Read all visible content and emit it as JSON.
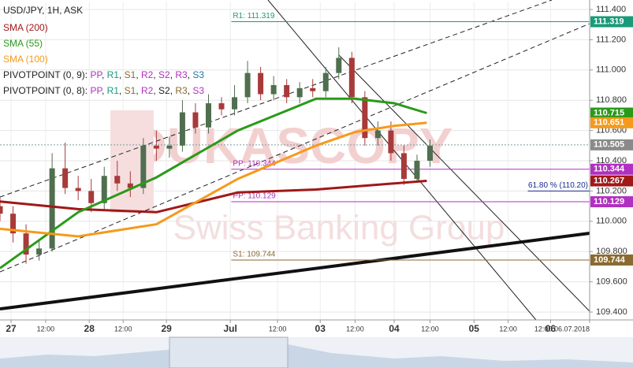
{
  "chart_data": {
    "type": "candlestick",
    "title": "USD/JPY, 1H, ASK",
    "watermark": [
      "DUKASCOPY",
      "Swiss Banking Group"
    ],
    "legend": [
      [
        {
          "text": "SMA (200)",
          "color": "#a01818"
        }
      ],
      [
        {
          "text": "SMA (55)",
          "color": "#2a9a1a"
        }
      ],
      [
        {
          "text": "SMA (100)",
          "color": "#f59a1a"
        }
      ],
      [
        {
          "text": "PIVOTPOINT (0, 9): ",
          "color": "#222"
        },
        {
          "text": "PP",
          "color": "#b030c0"
        },
        {
          "text": ", ",
          "color": "#222"
        },
        {
          "text": "R1",
          "color": "#1a9a7a"
        },
        {
          "text": ", ",
          "color": "#222"
        },
        {
          "text": "S1",
          "color": "#8a6a30"
        },
        {
          "text": ", ",
          "color": "#222"
        },
        {
          "text": "R2",
          "color": "#b030c0"
        },
        {
          "text": ", ",
          "color": "#222"
        },
        {
          "text": "S2",
          "color": "#b030c0"
        },
        {
          "text": ", ",
          "color": "#222"
        },
        {
          "text": "R3",
          "color": "#b030c0"
        },
        {
          "text": ", ",
          "color": "#222"
        },
        {
          "text": "S3",
          "color": "#1a7ab0"
        }
      ],
      [
        {
          "text": "PIVOTPOINT (0, 8): ",
          "color": "#222"
        },
        {
          "text": "PP",
          "color": "#b030c0"
        },
        {
          "text": ", ",
          "color": "#222"
        },
        {
          "text": "R1",
          "color": "#1a9a7a"
        },
        {
          "text": ", ",
          "color": "#222"
        },
        {
          "text": "S1",
          "color": "#8a6a30"
        },
        {
          "text": ", ",
          "color": "#222"
        },
        {
          "text": "R2",
          "color": "#b030c0"
        },
        {
          "text": ", ",
          "color": "#222"
        },
        {
          "text": "S2",
          "color": "#222"
        },
        {
          "text": ", ",
          "color": "#222"
        },
        {
          "text": "R3",
          "color": "#8a6a30"
        },
        {
          "text": ", ",
          "color": "#222"
        },
        {
          "text": "S3",
          "color": "#b030c0"
        }
      ]
    ],
    "candles": {
      "x": [
        0,
        4,
        8,
        12,
        16,
        20,
        24,
        28,
        32,
        36,
        40,
        44,
        48,
        52,
        56,
        60,
        64,
        68,
        72,
        76,
        80,
        84,
        88,
        92,
        96,
        100,
        104,
        108,
        112,
        116,
        120,
        124,
        128,
        132
      ],
      "open": [
        110.1,
        110.05,
        109.92,
        109.78,
        109.82,
        110.35,
        110.22,
        110.2,
        110.12,
        110.3,
        110.25,
        110.22,
        110.5,
        110.48,
        110.5,
        110.72,
        110.62,
        110.78,
        110.74,
        110.82,
        110.98,
        110.84,
        110.9,
        110.82,
        110.88,
        110.86,
        110.98,
        111.08,
        110.82,
        110.55,
        110.6,
        110.45,
        110.28,
        110.4
      ],
      "high": [
        110.16,
        110.1,
        109.98,
        109.88,
        110.45,
        110.52,
        110.3,
        110.28,
        110.36,
        110.4,
        110.33,
        110.55,
        110.6,
        110.56,
        110.8,
        110.78,
        110.84,
        110.82,
        110.9,
        111.06,
        111.02,
        110.96,
        110.94,
        110.92,
        110.94,
        111.02,
        111.15,
        111.12,
        110.86,
        110.66,
        110.66,
        110.5,
        110.44,
        110.54
      ],
      "low": [
        110.0,
        109.86,
        109.72,
        109.74,
        109.8,
        110.18,
        110.14,
        110.06,
        110.08,
        110.2,
        110.16,
        110.18,
        110.4,
        110.42,
        110.46,
        110.58,
        110.58,
        110.7,
        110.7,
        110.78,
        110.8,
        110.8,
        110.78,
        110.78,
        110.82,
        110.82,
        110.94,
        110.78,
        110.5,
        110.5,
        110.4,
        110.24,
        110.26,
        110.36
      ],
      "close": [
        110.05,
        109.92,
        109.78,
        109.82,
        110.35,
        110.22,
        110.2,
        110.12,
        110.3,
        110.25,
        110.22,
        110.5,
        110.48,
        110.5,
        110.72,
        110.62,
        110.78,
        110.74,
        110.82,
        110.98,
        110.84,
        110.9,
        110.82,
        110.88,
        110.86,
        110.98,
        111.08,
        110.82,
        110.55,
        110.6,
        110.45,
        110.28,
        110.4,
        110.5
      ],
      "up_color": "#4f6f4f",
      "down_color": "#a83a3a"
    },
    "series": [
      {
        "name": "SMA (200)",
        "color": "#a01818",
        "x": [
          0,
          24,
          48,
          73,
          97,
          109,
          121,
          131
        ],
        "values": [
          110.13,
          110.08,
          110.06,
          110.19,
          110.21,
          110.23,
          110.25,
          110.267
        ]
      },
      {
        "name": "SMA (55)",
        "color": "#2a9a1a",
        "x": [
          0,
          24,
          48,
          73,
          97,
          109,
          121,
          131
        ],
        "values": [
          109.69,
          110.06,
          110.29,
          110.6,
          110.81,
          110.81,
          110.78,
          110.715
        ]
      },
      {
        "name": "SMA (100)",
        "color": "#f59a1a",
        "x": [
          0,
          24,
          48,
          73,
          97,
          109,
          121,
          131
        ],
        "values": [
          109.95,
          109.9,
          109.98,
          110.28,
          110.5,
          110.59,
          110.63,
          110.651
        ]
      }
    ],
    "levels": [
      {
        "label": "R1: 111.319",
        "value": 111.319,
        "color": "#1a9a7a",
        "x": 71
      },
      {
        "label": "PP: 110.344",
        "value": 110.344,
        "color": "#b030c0",
        "x": 71
      },
      {
        "label": "61.80 % (110.20)",
        "value": 110.2,
        "color": "#1a2a8a",
        "x": 162
      },
      {
        "label": "PP: 110.129",
        "value": 110.129,
        "color": "#b030c0",
        "x": 71
      },
      {
        "label": "S1: 109.744",
        "value": 109.744,
        "color": "#8a6a30",
        "x": 71
      }
    ],
    "current": 110.505,
    "price_tags": [
      {
        "value": 111.319,
        "color": "#1a9a7a"
      },
      {
        "value": 110.715,
        "color": "#2a9a1a"
      },
      {
        "value": 110.651,
        "color": "#f59a1a"
      },
      {
        "value": 110.505,
        "color": "#8a8a8a"
      },
      {
        "value": 110.344,
        "color": "#b030c0"
      },
      {
        "value": 110.267,
        "color": "#a01818"
      },
      {
        "value": 110.129,
        "color": "#b030c0"
      },
      {
        "value": 109.744,
        "color": "#8a6a30"
      }
    ],
    "ylim": [
      109.35,
      111.45
    ],
    "yticks": [
      {
        "value": 109.4,
        "label": "109.400"
      },
      {
        "value": 109.6,
        "label": "109.600"
      },
      {
        "value": 109.8,
        "label": "109.800"
      },
      {
        "value": 110.0,
        "label": "110.000"
      },
      {
        "value": 110.2,
        "label": "110.200"
      },
      {
        "value": 110.4,
        "label": "110.400"
      },
      {
        "value": 110.6,
        "label": "110.600"
      },
      {
        "value": 110.8,
        "label": "110.800"
      },
      {
        "value": 111.0,
        "label": "111.000"
      },
      {
        "value": 111.2,
        "label": "111.200"
      },
      {
        "value": 111.4,
        "label": "111.400"
      }
    ],
    "xlim": [
      0,
      181
    ],
    "xticks": [
      {
        "value": 3.4,
        "label": "27"
      },
      {
        "value": 14,
        "label": "12:00"
      },
      {
        "value": 27.4,
        "label": "28"
      },
      {
        "value": 37.8,
        "label": "12:00"
      },
      {
        "value": 51.1,
        "label": "29"
      },
      {
        "value": 70.7,
        "label": "Jul"
      },
      {
        "value": 85.2,
        "label": "12:00"
      },
      {
        "value": 98.3,
        "label": "03"
      },
      {
        "value": 109,
        "label": "12:00"
      },
      {
        "value": 121,
        "label": "04"
      },
      {
        "value": 132,
        "label": "12:00"
      },
      {
        "value": 145.5,
        "label": "05"
      },
      {
        "value": 156,
        "label": "12:00"
      },
      {
        "value": 169,
        "label": "06"
      },
      {
        "value": 181,
        "label": "12:00 06.07.2018"
      }
    ],
    "grid": true
  }
}
